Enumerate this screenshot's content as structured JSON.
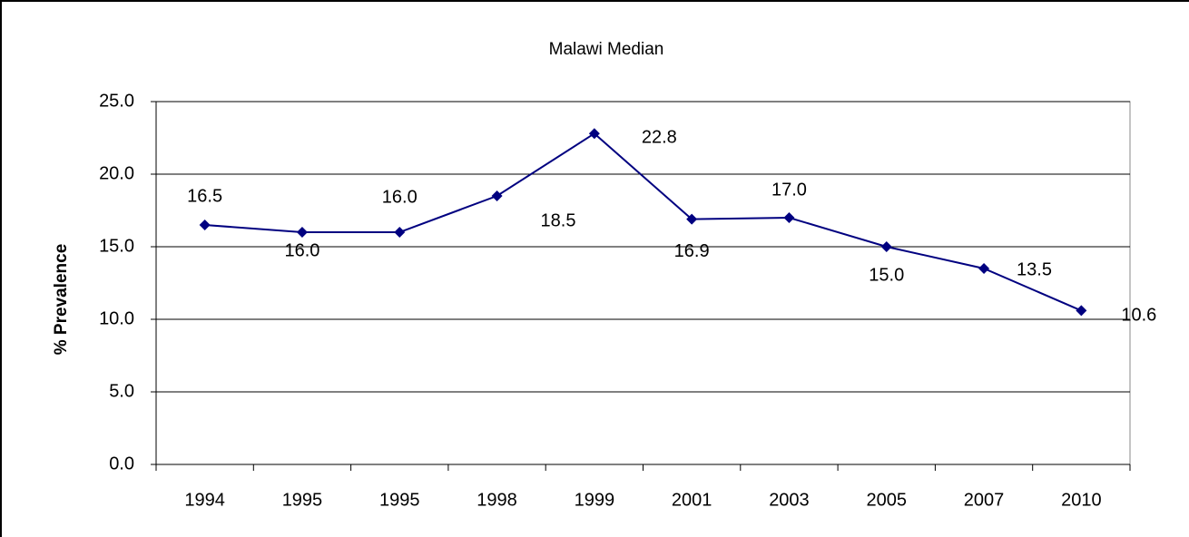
{
  "chart_data": {
    "type": "line",
    "title": "Malawi Median",
    "y_label": "% Prevalence",
    "categories": [
      "1994",
      "1995",
      "1995",
      "1998",
      "1999",
      "2001",
      "2003",
      "2005",
      "2007",
      "2010"
    ],
    "series": [
      {
        "name": "Malawi Median",
        "color": "#000080",
        "values": [
          16.5,
          16.0,
          16.0,
          18.5,
          22.8,
          16.9,
          17.0,
          15.0,
          13.5,
          10.6
        ],
        "value_labels": [
          "16.5",
          "16.0",
          "16.0",
          "18.5",
          "22.8",
          "16.9",
          "17.0",
          "15.0",
          "13.5",
          "10.6"
        ]
      }
    ],
    "ylim": [
      0,
      25
    ],
    "yticks": [
      {
        "value": 0,
        "label": "0.0"
      },
      {
        "value": 5,
        "label": "5.0"
      },
      {
        "value": 10,
        "label": "10.0"
      },
      {
        "value": 15,
        "label": "15.0"
      },
      {
        "value": 20,
        "label": "20.0"
      },
      {
        "value": 25,
        "label": "25.0"
      }
    ],
    "grid": true
  }
}
